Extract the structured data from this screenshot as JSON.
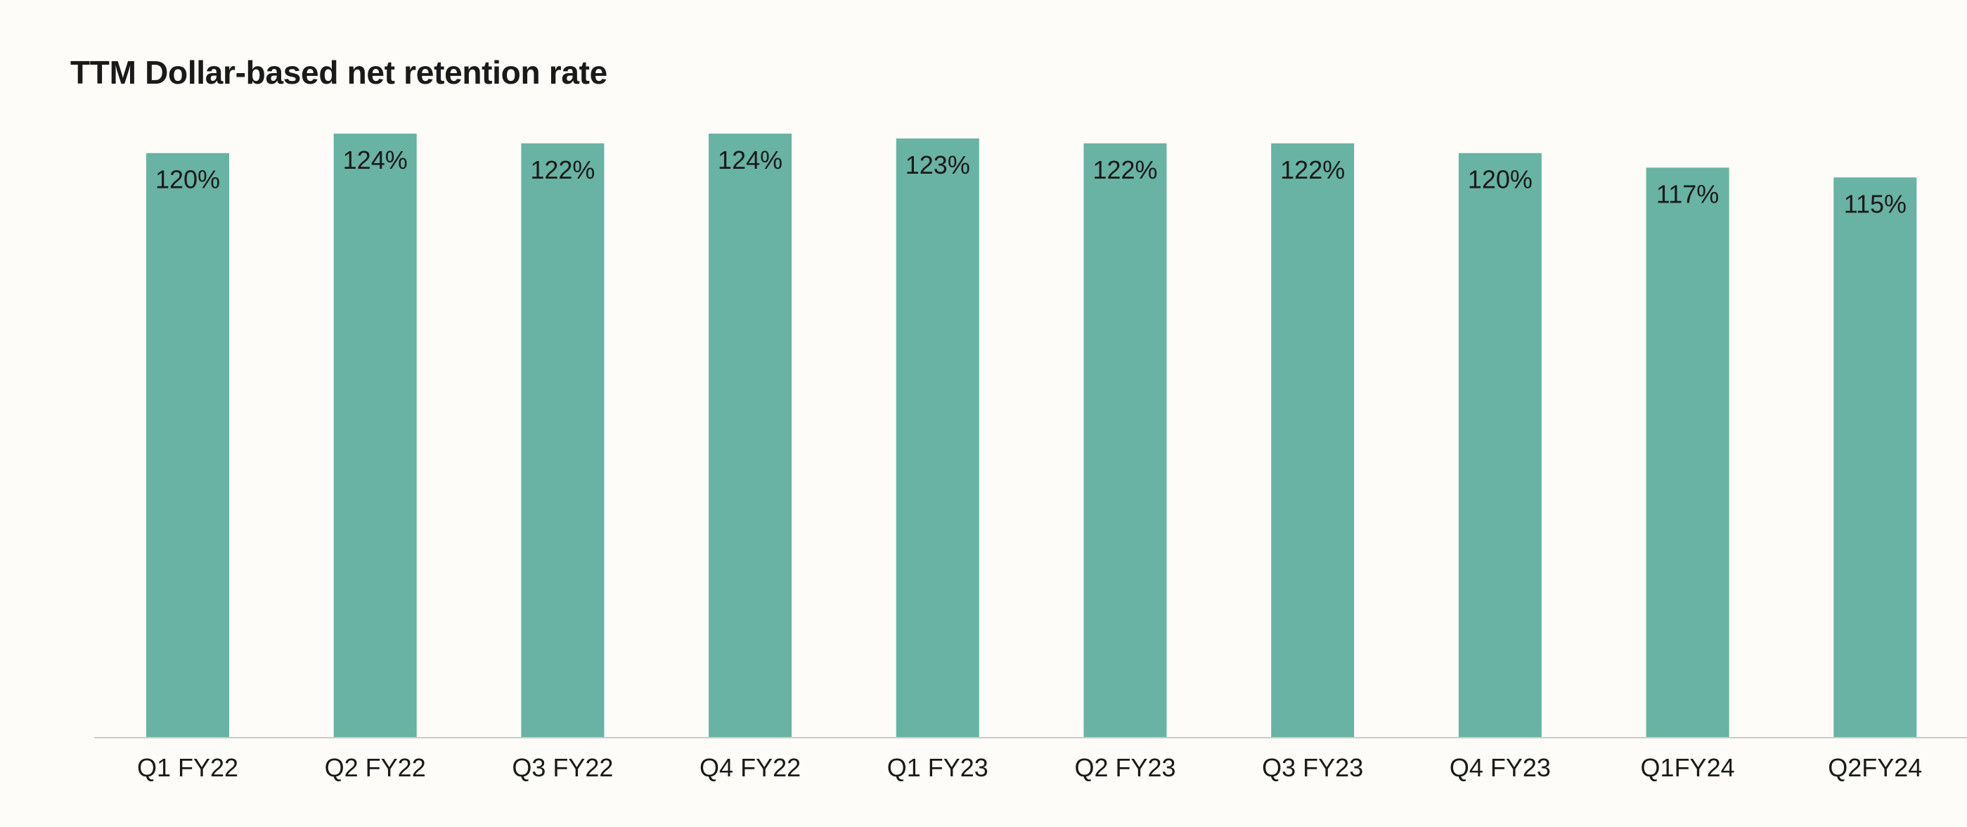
{
  "chart_data": {
    "type": "bar",
    "title": "TTM Dollar-based net retention rate",
    "categories": [
      "Q1 FY22",
      "Q2 FY22",
      "Q3 FY22",
      "Q4 FY22",
      "Q1 FY23",
      "Q2 FY23",
      "Q3 FY23",
      "Q4 FY23",
      "Q1FY24",
      "Q2FY24"
    ],
    "values": [
      120,
      124,
      122,
      124,
      123,
      122,
      122,
      120,
      117,
      115
    ],
    "data_labels": [
      "120%",
      "124%",
      "122%",
      "124%",
      "123%",
      "122%",
      "122%",
      "120%",
      "117%",
      "115%"
    ],
    "xlabel": "",
    "ylabel": "",
    "ylim": [
      0,
      128
    ],
    "grid": false,
    "legend": "none",
    "bar_color": "#68b3a3",
    "axis_color": "#cccccc"
  }
}
